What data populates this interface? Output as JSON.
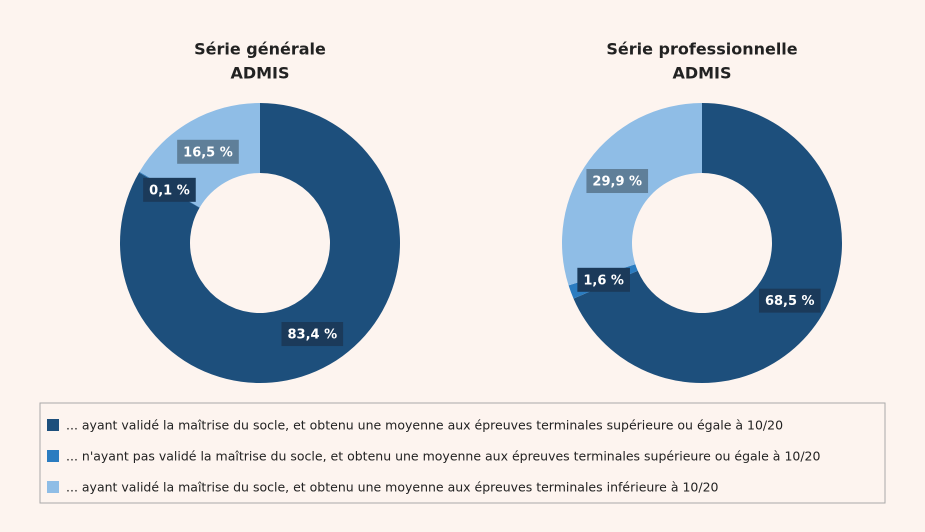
{
  "chart_data": [
    {
      "type": "pie",
      "title": "Série générale",
      "subtitle": "ADMIS",
      "values": [
        83.4,
        0.1,
        16.5
      ],
      "value_labels": [
        "83,4 %",
        "0,1 %",
        "16,5 %"
      ]
    },
    {
      "type": "pie",
      "title": "Série professionnelle",
      "subtitle": "ADMIS",
      "values": [
        68.5,
        1.6,
        29.9
      ],
      "value_labels": [
        "68,5 %",
        "1,6 %",
        "29,9 %"
      ]
    }
  ],
  "legend": [
    {
      "label": "... ayant validé la maîtrise du socle, et obtenu une moyenne aux épreuves terminales supérieure ou égale à 10/20",
      "color": "#1d4f7c",
      "label_box": "#1b3a5a"
    },
    {
      "label": "... n'ayant pas validé la maîtrise du socle, et obtenu une moyenne aux épreuves terminales supérieure ou égale à 10/20",
      "color": "#2b7cc0",
      "label_box": "#1b3a5a"
    },
    {
      "label": "... ayant validé la maîtrise du socle, et obtenu une moyenne aux épreuves terminales inférieure à 10/20",
      "color": "#8fbde6",
      "label_box": "#5f7f99"
    }
  ]
}
